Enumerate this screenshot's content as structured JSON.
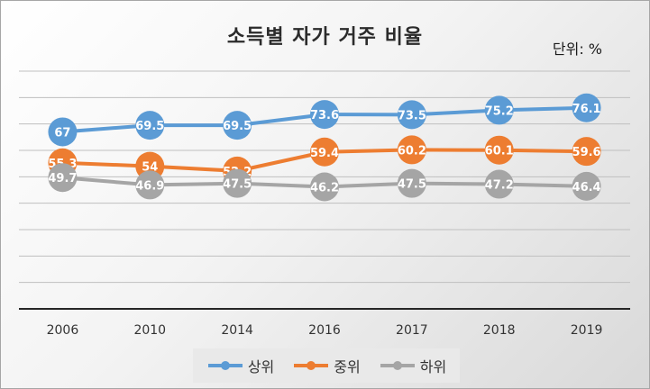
{
  "chart_data": {
    "type": "line",
    "title": "소득별 자가 거주 비율",
    "unit_label": "단위: %",
    "categories": [
      "2006",
      "2010",
      "2014",
      "2016",
      "2017",
      "2018",
      "2019"
    ],
    "series": [
      {
        "name": "상위",
        "color": "#5b9bd5",
        "values": [
          67,
          69.5,
          69.5,
          73.6,
          73.5,
          75.2,
          76.1
        ],
        "labels": [
          "67",
          "69.5",
          "69.5",
          "73.6",
          "73.5",
          "75.2",
          "76.1"
        ]
      },
      {
        "name": "중위",
        "color": "#ed7d31",
        "values": [
          55.3,
          54,
          52.2,
          59.4,
          60.2,
          60.1,
          59.6
        ],
        "labels": [
          "55.3",
          "54",
          "52.2",
          "59.4",
          "60.2",
          "60.1",
          "59.6"
        ]
      },
      {
        "name": "하위",
        "color": "#a5a5a5",
        "values": [
          49.7,
          46.9,
          47.5,
          46.2,
          47.5,
          47.2,
          46.4
        ],
        "labels": [
          "49.7",
          "46.9",
          "47.5",
          "46.2",
          "47.5",
          "47.2",
          "46.4"
        ]
      }
    ],
    "ylim": [
      0,
      90
    ],
    "grid": true,
    "legend": "bottom"
  }
}
